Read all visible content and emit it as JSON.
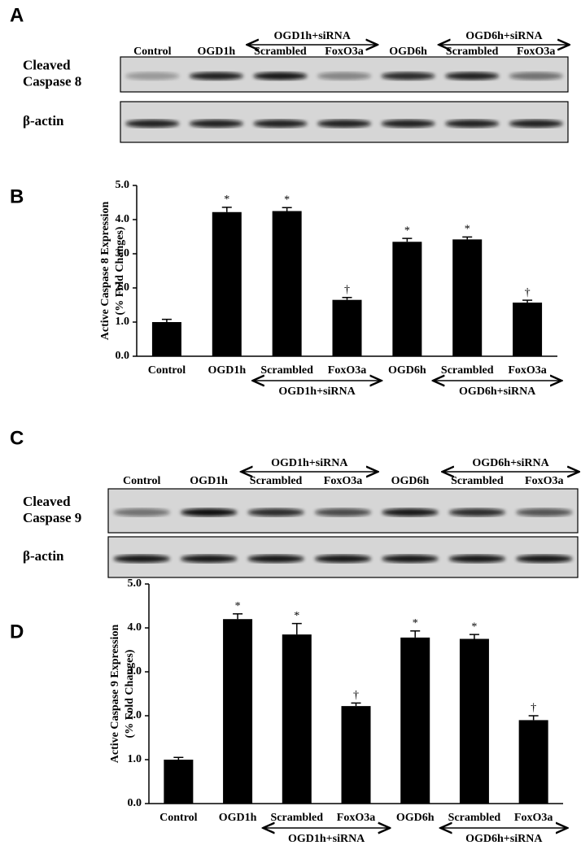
{
  "blots": [
    {
      "letter": "A",
      "groups": [
        "OGD1h+siRNA",
        "OGD6h+siRNA"
      ],
      "lanes": [
        "Control",
        "OGD1h",
        "Scrambled",
        "FoxO3a",
        "OGD6h",
        "Scrambled",
        "FoxO3a"
      ],
      "rows": [
        [
          "Cleaved",
          "Caspase 8"
        ],
        [
          "β-actin"
        ]
      ]
    },
    {
      "letter": "C",
      "groups": [
        "OGD1h+siRNA",
        "OGD6h+siRNA"
      ],
      "lanes": [
        "Control",
        "OGD1h",
        "Scrambled",
        "FoxO3a",
        "OGD6h",
        "Scrambled",
        "FoxO3a"
      ],
      "rows": [
        [
          "Cleaved",
          "Caspase 9"
        ],
        [
          "β-actin"
        ]
      ]
    }
  ],
  "chart_data": [
    {
      "type": "bar",
      "panel": "B",
      "ylabel": [
        "Active Caspase 8 Expression",
        "(% Fold Changes)"
      ],
      "categories": [
        "Control",
        "OGD1h",
        "Scrambled",
        "FoxO3a",
        "OGD6h",
        "Scrambled",
        "FoxO3a"
      ],
      "groups": [
        "OGD1h+siRNA",
        "OGD6h+siRNA"
      ],
      "values": [
        1.0,
        4.22,
        4.25,
        1.65,
        3.35,
        3.42,
        1.57
      ],
      "errors": [
        0.08,
        0.14,
        0.1,
        0.07,
        0.1,
        0.07,
        0.07
      ],
      "annotations": [
        null,
        "*",
        "*",
        "†",
        "*",
        "*",
        "†"
      ],
      "color": "#000000",
      "ylim": [
        0,
        5
      ],
      "yticks": [
        {
          "value": 0,
          "label": "0.0"
        },
        {
          "value": 1,
          "label": "1.0"
        },
        {
          "value": 2,
          "label": "2.0"
        },
        {
          "value": 3,
          "label": "3.0"
        },
        {
          "value": 4,
          "label": "4.0"
        },
        {
          "value": 5,
          "label": "5.0"
        }
      ]
    },
    {
      "type": "bar",
      "panel": "D",
      "ylabel": [
        "Active Caspase 9 Expression",
        "(% Fold Changes)"
      ],
      "categories": [
        "Control",
        "OGD1h",
        "Scrambled",
        "FoxO3a",
        "OGD6h",
        "Scrambled",
        "FoxO3a"
      ],
      "groups": [
        "OGD1h+siRNA",
        "OGD6h+siRNA"
      ],
      "values": [
        1.0,
        4.2,
        3.85,
        2.22,
        3.78,
        3.75,
        1.9
      ],
      "errors": [
        0.05,
        0.12,
        0.25,
        0.07,
        0.15,
        0.1,
        0.1
      ],
      "annotations": [
        null,
        "*",
        "*",
        "†",
        "*",
        "*",
        "†"
      ],
      "color": "#000000",
      "ylim": [
        0,
        5
      ],
      "yticks": [
        {
          "value": 0,
          "label": "0.0"
        },
        {
          "value": 1,
          "label": "1.0"
        },
        {
          "value": 2,
          "label": "2.0"
        },
        {
          "value": 3,
          "label": "3.0"
        },
        {
          "value": 4,
          "label": "4.0"
        },
        {
          "value": 5,
          "label": "5.0"
        }
      ]
    }
  ]
}
